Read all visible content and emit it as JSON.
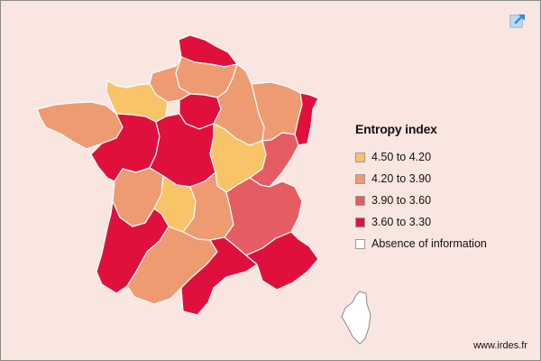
{
  "legend": {
    "title": "Entropy index",
    "items": [
      {
        "label": "4.50 to 4.20",
        "color": "#f9c468"
      },
      {
        "label": "4.20 to 3.90",
        "color": "#ef9b72"
      },
      {
        "label": "3.90 to 3.60",
        "color": "#e55c62"
      },
      {
        "label": "3.60 to 3.30",
        "color": "#e0103d"
      },
      {
        "label": "Absence of information",
        "color": "#ffffff"
      }
    ]
  },
  "regions": [
    {
      "name": "Nord-Pas-de-Calais",
      "class": "3.60 to 3.30"
    },
    {
      "name": "Picardie",
      "class": "4.20 to 3.90"
    },
    {
      "name": "Haute-Normandie",
      "class": "4.20 to 3.90"
    },
    {
      "name": "Basse-Normandie",
      "class": "4.50 to 4.20"
    },
    {
      "name": "Ile-de-France",
      "class": "3.60 to 3.30"
    },
    {
      "name": "Champagne-Ardenne",
      "class": "4.20 to 3.90"
    },
    {
      "name": "Lorraine",
      "class": "4.20 to 3.90"
    },
    {
      "name": "Alsace",
      "class": "3.60 to 3.30"
    },
    {
      "name": "Bretagne",
      "class": "4.20 to 3.90"
    },
    {
      "name": "Pays de la Loire",
      "class": "3.60 to 3.30"
    },
    {
      "name": "Centre",
      "class": "3.60 to 3.30"
    },
    {
      "name": "Bourgogne",
      "class": "4.50 to 4.20"
    },
    {
      "name": "Franche-Comte",
      "class": "3.90 to 3.60"
    },
    {
      "name": "Poitou-Charentes",
      "class": "4.20 to 3.90"
    },
    {
      "name": "Limousin",
      "class": "4.50 to 4.20"
    },
    {
      "name": "Auvergne",
      "class": "4.20 to 3.90"
    },
    {
      "name": "Rhone-Alpes",
      "class": "3.90 to 3.60"
    },
    {
      "name": "Aquitaine",
      "class": "3.60 to 3.30"
    },
    {
      "name": "Midi-Pyrenees",
      "class": "4.20 to 3.90"
    },
    {
      "name": "Languedoc-Roussillon",
      "class": "3.60 to 3.30"
    },
    {
      "name": "Provence-Alpes-Cote d'Azur",
      "class": "3.60 to 3.30"
    },
    {
      "name": "Corse",
      "class": "Absence of information"
    }
  ],
  "expand_icon": {
    "name": "expand-icon",
    "color": "#2a8fd8"
  },
  "credit": "www.irdes.fr"
}
